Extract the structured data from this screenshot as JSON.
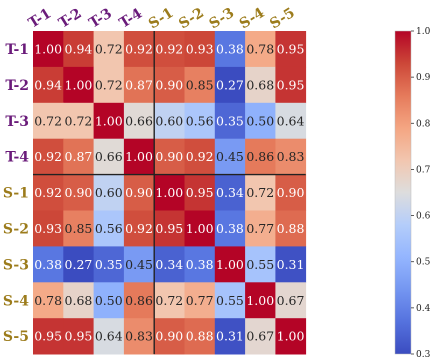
{
  "chart_data": {
    "type": "heatmap",
    "title": "",
    "xlabel": "",
    "ylabel": "",
    "rows": [
      "T-1",
      "T-2",
      "T-3",
      "T-4",
      "S-1",
      "S-2",
      "S-3",
      "S-4",
      "S-5"
    ],
    "cols": [
      "T-1",
      "T-2",
      "T-3",
      "T-4",
      "S-1",
      "S-2",
      "S-3",
      "S-4",
      "S-5"
    ],
    "values": [
      [
        1.0,
        0.94,
        0.72,
        0.92,
        0.92,
        0.93,
        0.38,
        0.78,
        0.95
      ],
      [
        0.94,
        1.0,
        0.72,
        0.87,
        0.9,
        0.85,
        0.27,
        0.68,
        0.95
      ],
      [
        0.72,
        0.72,
        1.0,
        0.66,
        0.6,
        0.56,
        0.35,
        0.5,
        0.64
      ],
      [
        0.92,
        0.87,
        0.66,
        1.0,
        0.9,
        0.92,
        0.45,
        0.86,
        0.83
      ],
      [
        0.92,
        0.9,
        0.6,
        0.9,
        1.0,
        0.95,
        0.34,
        0.72,
        0.9
      ],
      [
        0.93,
        0.85,
        0.56,
        0.92,
        0.95,
        1.0,
        0.38,
        0.77,
        0.88
      ],
      [
        0.38,
        0.27,
        0.35,
        0.45,
        0.34,
        0.38,
        1.0,
        0.55,
        0.31
      ],
      [
        0.78,
        0.68,
        0.5,
        0.86,
        0.72,
        0.77,
        0.55,
        1.0,
        0.67
      ],
      [
        0.95,
        0.95,
        0.64,
        0.83,
        0.9,
        0.88,
        0.31,
        0.67,
        1.0
      ]
    ],
    "value_range": [
      0.3,
      1.0
    ],
    "colorbar_ticks": [
      0.3,
      0.4,
      0.5,
      0.6,
      0.7,
      0.8,
      0.9,
      1.0
    ],
    "colormap": "coolwarm",
    "group_colors": {
      "T": "#6a1b7a",
      "S": "#9c7c1c"
    },
    "divider_after_index": 4
  }
}
